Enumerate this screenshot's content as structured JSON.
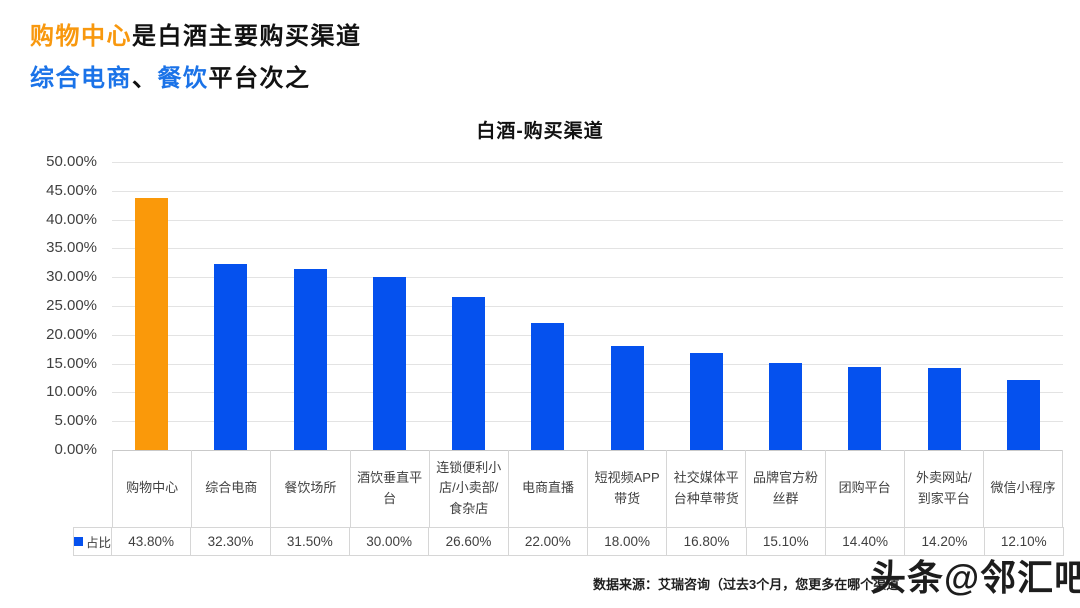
{
  "headline": {
    "line1": [
      {
        "text": "购物中心",
        "color": "#F8980E"
      },
      {
        "text": "是白酒主要购买渠道",
        "color": "#111111"
      }
    ],
    "line2": [
      {
        "text": "综合电商",
        "color": "#1B73E8"
      },
      {
        "text": "、",
        "color": "#111111"
      },
      {
        "text": "餐饮",
        "color": "#1B73E8"
      },
      {
        "text": "平台次之",
        "color": "#111111"
      }
    ]
  },
  "chart_data": {
    "type": "bar",
    "title": "白酒-购买渠道",
    "categories": [
      "购物中心",
      "综合电商",
      "餐饮场所",
      "酒饮垂直平台",
      "连锁便利小店/小卖部/食杂店",
      "电商直播",
      "短视频APP带货",
      "社交媒体平台种草带货",
      "品牌官方粉丝群",
      "团购平台",
      "外卖网站/到家平台",
      "微信小程序"
    ],
    "values": [
      43.8,
      32.3,
      31.5,
      30.0,
      26.6,
      22.0,
      18.0,
      16.8,
      15.1,
      14.4,
      14.2,
      12.1
    ],
    "value_labels": [
      "43.80%",
      "32.30%",
      "31.50%",
      "30.00%",
      "26.60%",
      "22.00%",
      "18.00%",
      "16.80%",
      "15.10%",
      "14.40%",
      "14.20%",
      "12.10%"
    ],
    "series_name": "占比",
    "xlabel": "",
    "ylabel": "",
    "ylim": [
      0,
      50
    ],
    "y_tick_step": 5,
    "y_ticks": [
      "50.00%",
      "45.00%",
      "40.00%",
      "35.00%",
      "30.00%",
      "25.00%",
      "20.00%",
      "15.00%",
      "10.00%",
      "5.00%",
      "0.00%"
    ],
    "grid": true,
    "legend_position": "bottom-data-table",
    "bar_color": "#0551EE",
    "highlight_color": "#FA990A",
    "highlight_index": 0
  },
  "footer": {
    "source": "数据来源：艾瑞咨询（过去3个月，您更多在哪个渠道",
    "watermark": "头条@邻汇吧"
  }
}
